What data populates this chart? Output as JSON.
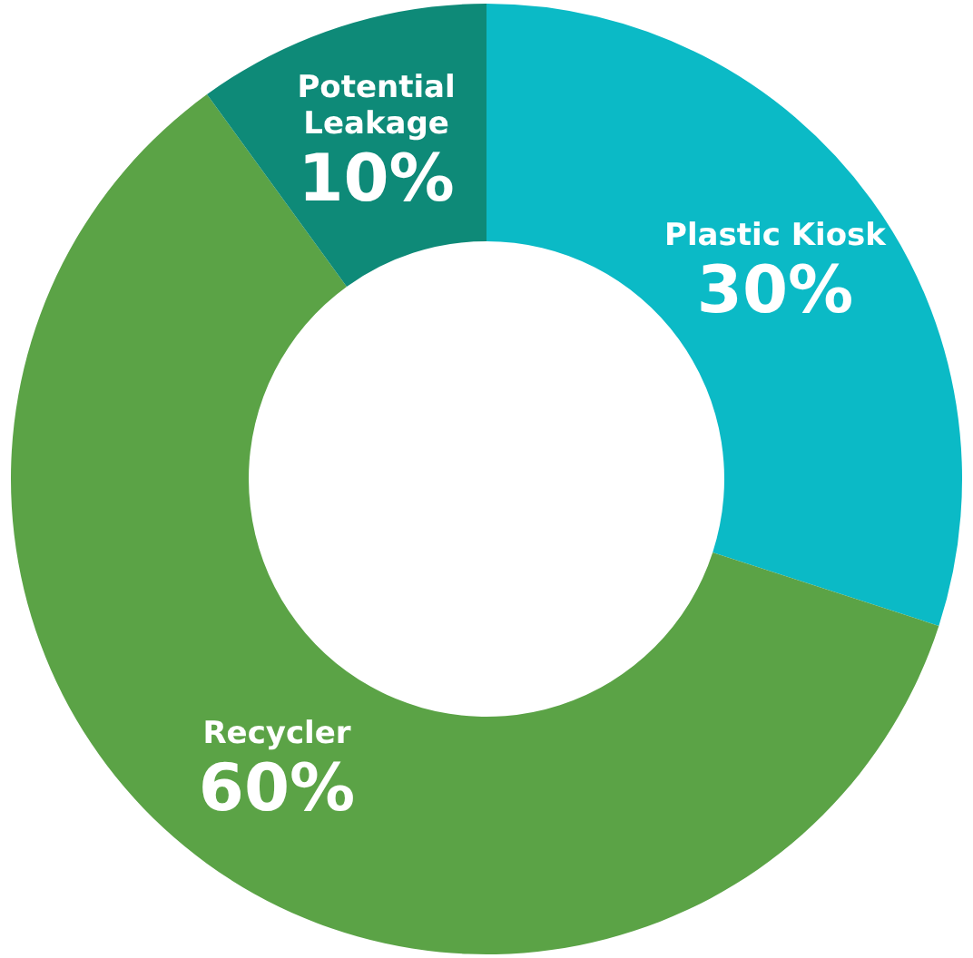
{
  "chart_data": {
    "type": "donut",
    "categories": [
      "Plastic Kiosk",
      "Recycler",
      "Potential Leakage"
    ],
    "values": [
      30,
      60,
      10
    ],
    "colors": [
      "#0bbac6",
      "#5ba346",
      "#0e8a78"
    ],
    "value_labels": [
      "30%",
      "60%",
      "10%"
    ],
    "legend": false
  }
}
